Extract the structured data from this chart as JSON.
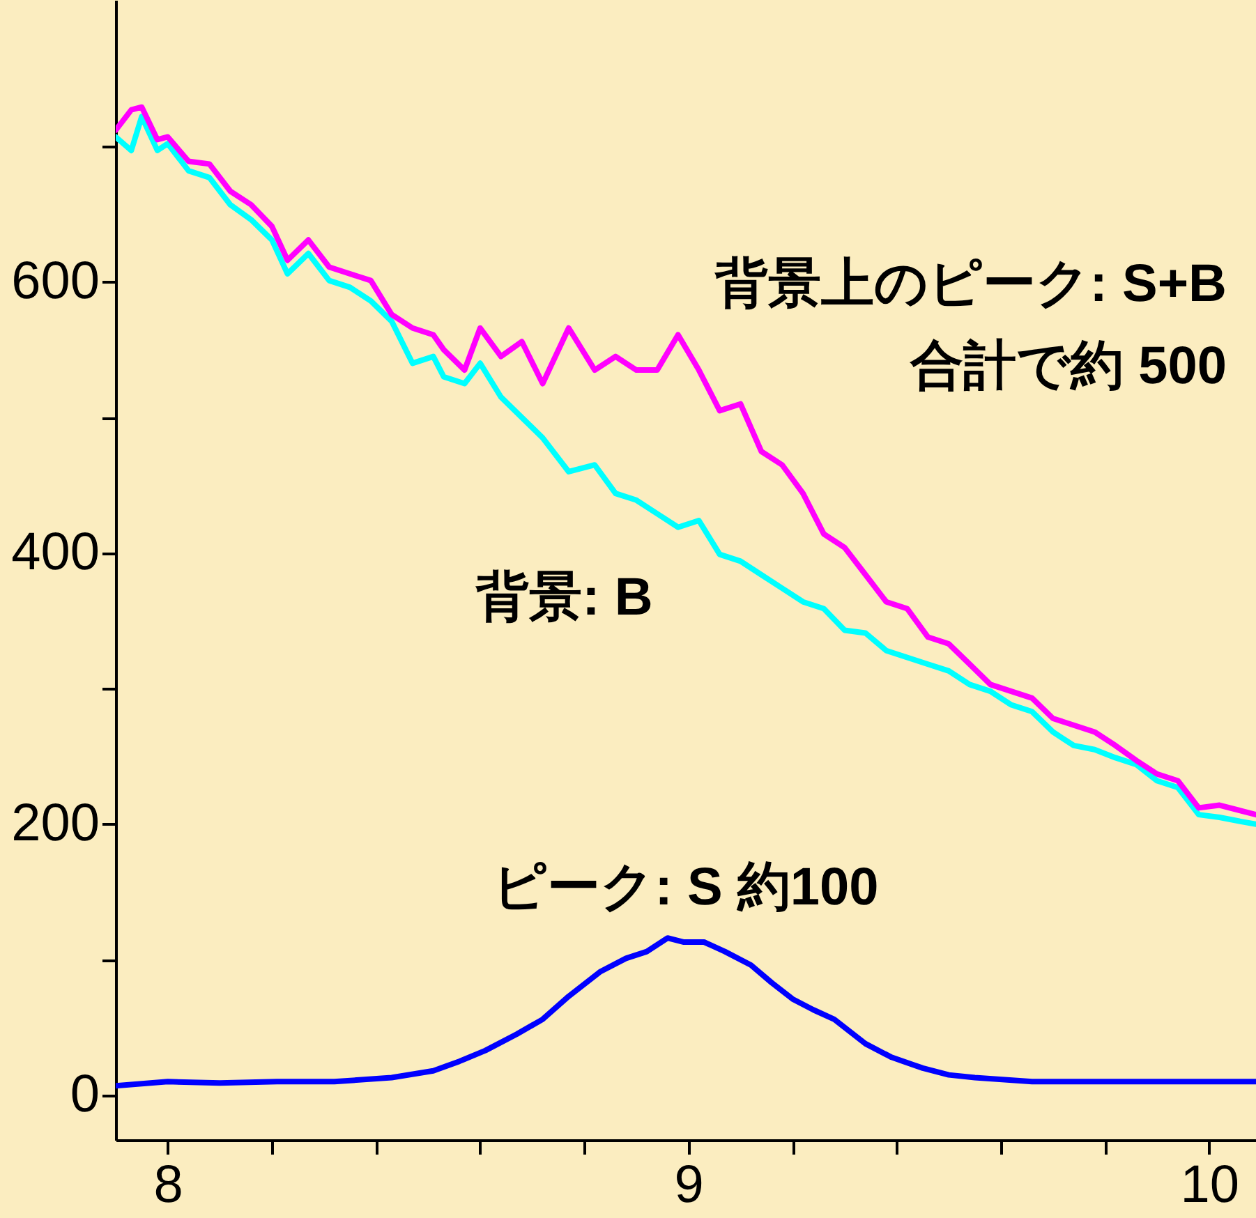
{
  "chart_data": {
    "type": "line",
    "xlim": [
      7.9,
      10.09
    ],
    "ylim": [
      -33,
      808
    ],
    "xticks": [
      8,
      {
        "value": 8.2,
        "label": null
      },
      {
        "value": 8.4,
        "label": null
      },
      {
        "value": 8.6,
        "label": null
      },
      {
        "value": 8.8,
        "label": null
      },
      9,
      {
        "value": 9.2,
        "label": null
      },
      {
        "value": 9.4,
        "label": null
      },
      {
        "value": 9.6,
        "label": null
      },
      {
        "value": 9.8,
        "label": null
      },
      10
    ],
    "yticks": [
      0,
      {
        "value": 100,
        "label": null
      },
      200,
      {
        "value": 300,
        "label": null
      },
      400,
      {
        "value": 500,
        "label": null
      },
      600,
      {
        "value": 700,
        "label": null
      }
    ],
    "grid": false,
    "marker": "none",
    "line_style": "solid",
    "x": [
      7.9,
      7.93,
      7.95,
      7.98,
      8.0,
      8.04,
      8.08,
      8.12,
      8.16,
      8.2,
      8.23,
      8.27,
      8.31,
      8.35,
      8.39,
      8.43,
      8.47,
      8.51,
      8.53,
      8.57,
      8.6,
      8.64,
      8.68,
      8.72,
      8.77,
      8.82,
      8.86,
      8.9,
      8.94,
      8.98,
      9.02,
      9.06,
      9.1,
      9.14,
      9.18,
      9.22,
      9.26,
      9.3,
      9.34,
      9.38,
      9.42,
      9.46,
      9.5,
      9.54,
      9.58,
      9.62,
      9.66,
      9.7,
      9.74,
      9.78,
      9.82,
      9.86,
      9.9,
      9.94,
      9.98,
      10.02,
      10.06,
      10.09
    ],
    "series": [
      {
        "color": "#00ffff",
        "values": [
          707,
          697,
          722,
          697,
          702,
          682,
          677,
          657,
          646,
          631,
          606,
          621,
          601,
          596,
          586,
          571,
          540,
          545,
          530,
          525,
          540,
          515,
          500,
          485,
          460,
          465,
          444,
          439,
          429,
          419,
          424,
          399,
          394,
          384,
          374,
          364,
          359,
          343,
          341,
          328,
          323,
          318,
          313,
          303,
          298,
          288,
          283,
          268,
          258,
          255,
          249,
          244,
          232,
          227,
          207,
          205,
          202,
          200
        ]
      },
      {
        "color": "#ff00ff",
        "values": [
          712,
          727,
          729,
          705,
          707,
          689,
          687,
          667,
          657,
          641,
          616,
          631,
          611,
          606,
          601,
          576,
          566,
          561,
          550,
          535,
          566,
          545,
          556,
          525,
          566,
          535,
          545,
          535,
          535,
          561,
          535,
          505,
          510,
          475,
          465,
          444,
          414,
          404,
          384,
          364,
          359,
          338,
          333,
          318,
          303,
          298,
          293,
          278,
          273,
          268,
          258,
          247,
          237,
          232,
          212,
          214,
          210,
          207
        ]
      },
      {
        "color": "#0000ff",
        "x": [
          7.9,
          8.0,
          8.1,
          8.21,
          8.32,
          8.43,
          8.51,
          8.56,
          8.61,
          8.67,
          8.72,
          8.77,
          8.83,
          8.88,
          8.92,
          8.96,
          8.99,
          9.03,
          9.07,
          9.12,
          9.16,
          9.2,
          9.24,
          9.28,
          9.34,
          9.39,
          9.45,
          9.5,
          9.55,
          9.66,
          9.77,
          9.87,
          9.98,
          10.09
        ],
        "values": [
          7,
          10,
          9,
          10,
          10,
          13,
          18,
          25,
          33,
          45,
          56,
          73,
          91,
          101,
          106,
          116,
          113,
          113,
          106,
          96,
          83,
          71,
          63,
          56,
          38,
          28,
          20,
          15,
          13,
          10,
          10,
          10,
          10,
          10
        ]
      }
    ],
    "annotations": [
      "背景上のピーク: S+B",
      "合計で約 500",
      "背景: B",
      "ピーク: S  約100"
    ]
  }
}
